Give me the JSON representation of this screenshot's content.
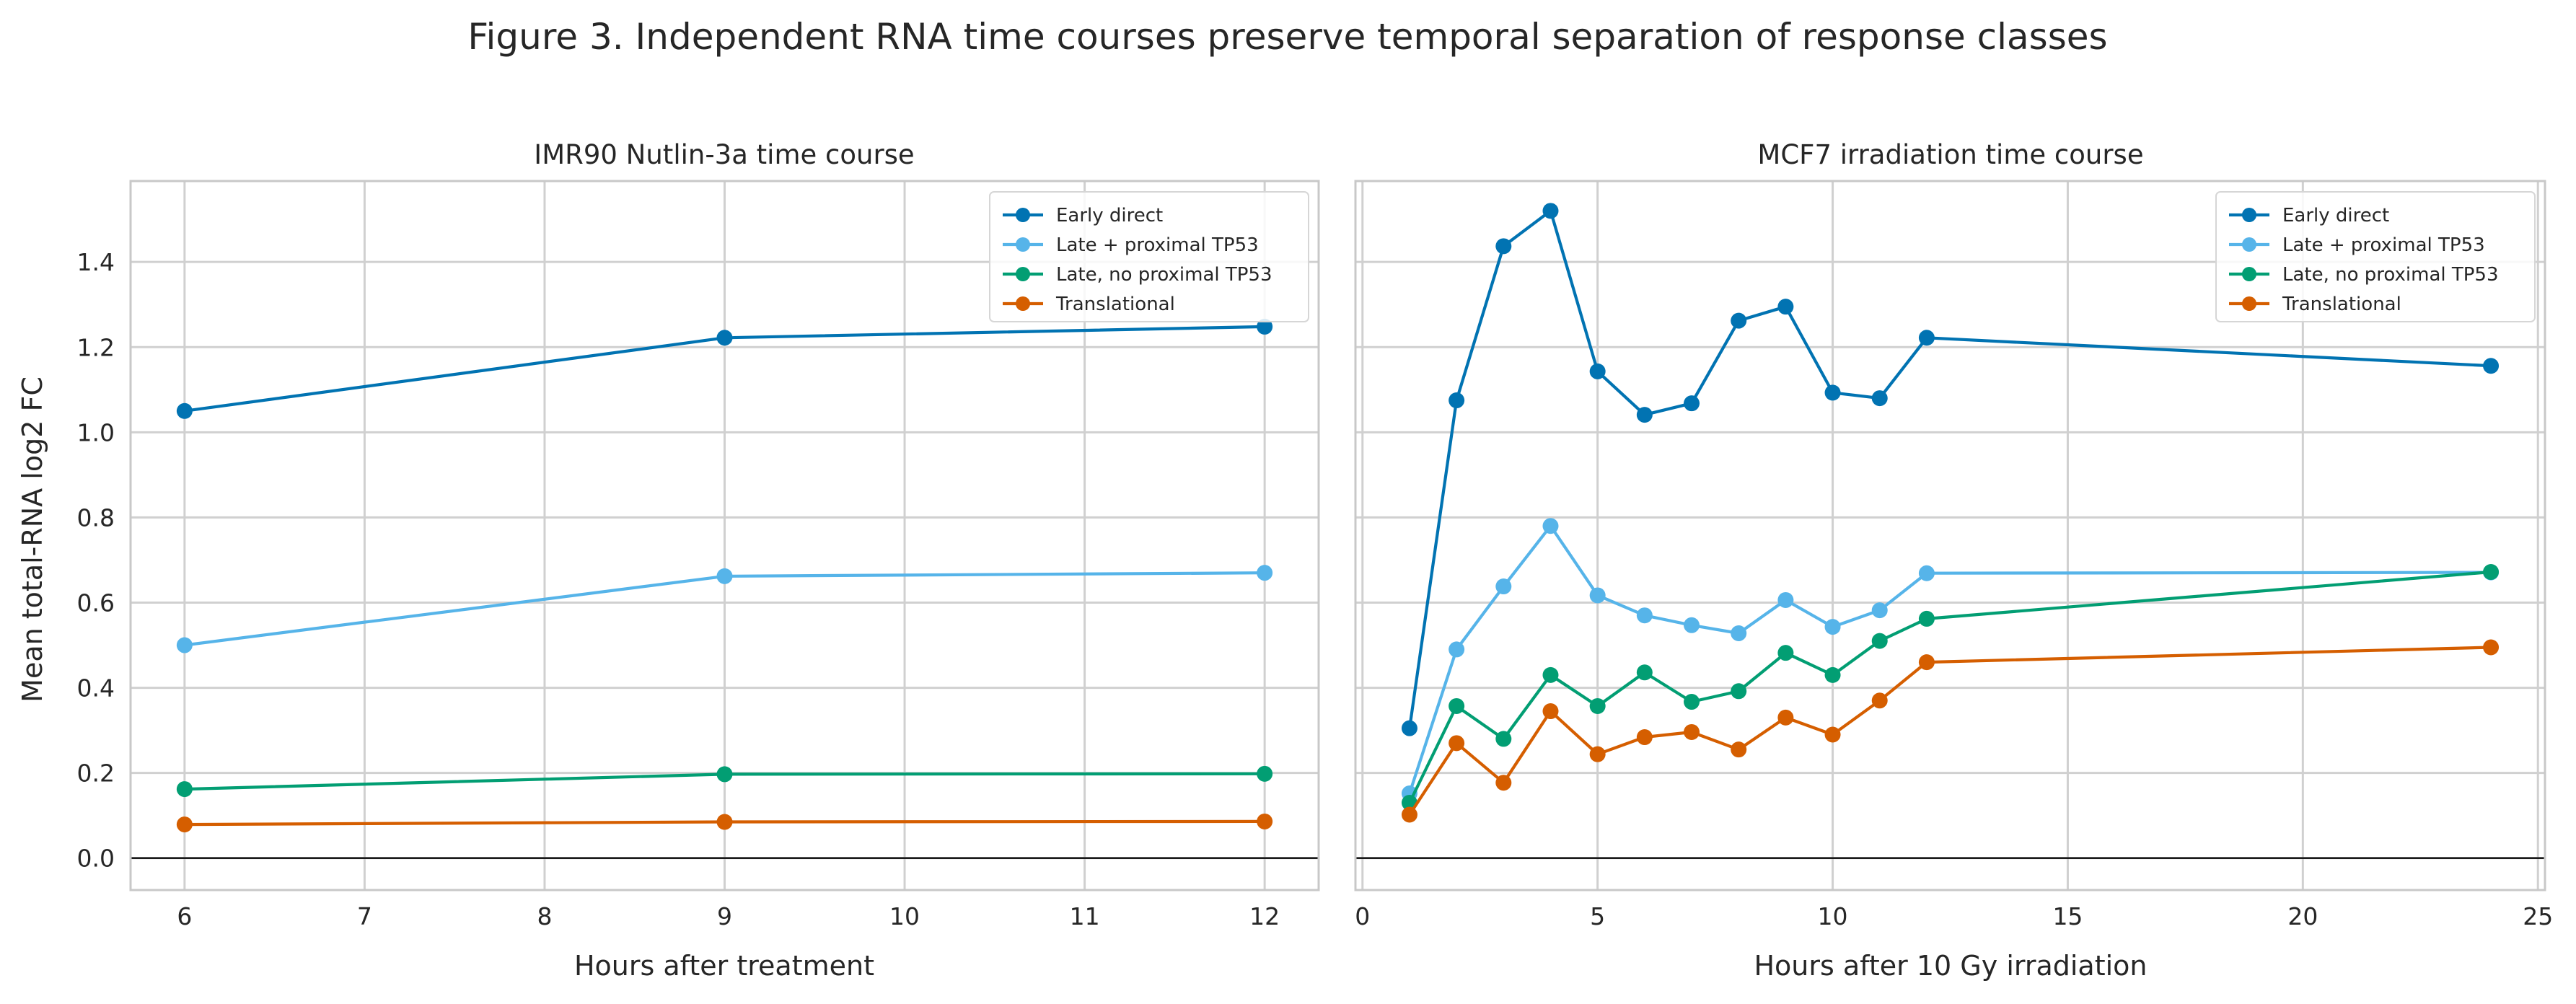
{
  "figure": {
    "title": "Figure 3. Independent RNA time courses preserve temporal separation of response classes"
  },
  "colors": {
    "early_direct": "#0173b2",
    "late_proximal": "#56b4e9",
    "late_no_proximal": "#029e73",
    "translational": "#d55e00",
    "grid": "#d0d0d0",
    "spine": "#c8c8c8",
    "zero_line": "#1a1a1a"
  },
  "chart_data": [
    {
      "type": "line",
      "title": "IMR90 Nutlin-3a time course",
      "xlabel": "Hours after treatment",
      "ylabel": "Mean total-RNA log2 FC",
      "xlim": [
        5.7,
        12.3
      ],
      "ylim": [
        -0.075,
        1.59
      ],
      "xticks": [
        6,
        7,
        8,
        9,
        10,
        11,
        12
      ],
      "yticks": [
        0.0,
        0.2,
        0.4,
        0.6,
        0.8,
        1.0,
        1.2,
        1.4
      ],
      "grid": true,
      "legend": "top-right",
      "zero_line": 0,
      "x": [
        6,
        9,
        12
      ],
      "series": [
        {
          "name": "Early direct",
          "color_key": "early_direct",
          "values": [
            1.05,
            1.222,
            1.248
          ]
        },
        {
          "name": "Late + proximal TP53",
          "color_key": "late_proximal",
          "values": [
            0.5,
            0.662,
            0.67
          ]
        },
        {
          "name": "Late, no proximal TP53",
          "color_key": "late_no_proximal",
          "values": [
            0.162,
            0.197,
            0.198
          ]
        },
        {
          "name": "Translational",
          "color_key": "translational",
          "values": [
            0.079,
            0.085,
            0.086
          ]
        }
      ]
    },
    {
      "type": "line",
      "title": "MCF7 irradiation time course",
      "xlabel": "Hours after 10 Gy irradiation",
      "ylabel": "",
      "xlim": [
        -0.15,
        25.15
      ],
      "ylim": [
        -0.075,
        1.59
      ],
      "xticks": [
        0,
        5,
        10,
        15,
        20,
        25
      ],
      "yticks": [
        0.0,
        0.2,
        0.4,
        0.6,
        0.8,
        1.0,
        1.2,
        1.4
      ],
      "grid": true,
      "legend": "top-right",
      "zero_line": 0,
      "x": [
        1,
        2,
        3,
        4,
        5,
        6,
        7,
        8,
        9,
        10,
        11,
        12,
        24
      ],
      "series": [
        {
          "name": "Early direct",
          "color_key": "early_direct",
          "values": [
            0.305,
            1.075,
            1.437,
            1.52,
            1.143,
            1.041,
            1.068,
            1.262,
            1.295,
            1.093,
            1.08,
            1.222,
            1.156
          ]
        },
        {
          "name": "Late + proximal TP53",
          "color_key": "late_proximal",
          "values": [
            0.152,
            0.49,
            0.638,
            0.78,
            0.617,
            0.57,
            0.547,
            0.528,
            0.606,
            0.543,
            0.582,
            0.669,
            0.671
          ]
        },
        {
          "name": "Late, no proximal TP53",
          "color_key": "late_no_proximal",
          "values": [
            0.13,
            0.357,
            0.28,
            0.43,
            0.357,
            0.436,
            0.367,
            0.392,
            0.482,
            0.43,
            0.51,
            0.562,
            0.672
          ]
        },
        {
          "name": "Translational",
          "color_key": "translational",
          "values": [
            0.102,
            0.27,
            0.177,
            0.345,
            0.244,
            0.284,
            0.296,
            0.255,
            0.33,
            0.29,
            0.37,
            0.46,
            0.495
          ]
        }
      ]
    }
  ]
}
